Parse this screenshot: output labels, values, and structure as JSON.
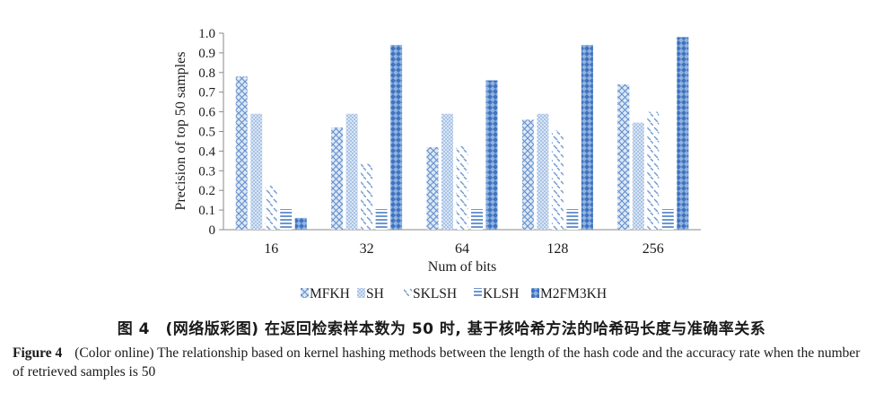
{
  "chart_data": {
    "type": "bar",
    "title": "",
    "xlabel": "Num of bits",
    "ylabel": "Precision of top 50 samples",
    "ylim": [
      0,
      1.0
    ],
    "yticks": [
      "0",
      "0.1",
      "0.2",
      "0.3",
      "0.4",
      "0.5",
      "0.6",
      "0.7",
      "0.8",
      "0.9",
      "1.0"
    ],
    "categories": [
      "16",
      "32",
      "64",
      "128",
      "256"
    ],
    "grid": false,
    "legend": "bottom",
    "series": [
      {
        "name": "MFKH",
        "values": [
          0.78,
          0.52,
          0.42,
          0.56,
          0.74
        ]
      },
      {
        "name": "SH",
        "values": [
          0.59,
          0.59,
          0.59,
          0.59,
          0.545
        ]
      },
      {
        "name": "SKLSH",
        "values": [
          0.225,
          0.335,
          0.425,
          0.505,
          0.6
        ]
      },
      {
        "name": "KLSH",
        "values": [
          0.105,
          0.105,
          0.105,
          0.105,
          0.105
        ]
      },
      {
        "name": "M2FM3KH",
        "values": [
          0.06,
          0.94,
          0.76,
          0.94,
          0.98
        ]
      }
    ]
  },
  "caption": {
    "zh": "图 4　(网络版彩图) 在返回检索样本数为 50 时, 基于核哈希方法的哈希码长度与准确率关系",
    "en_label": "Figure 4",
    "en_text": "(Color online) The relationship based on kernel hashing methods between the length of the hash code and the accuracy rate when the number of retrieved samples is 50"
  }
}
